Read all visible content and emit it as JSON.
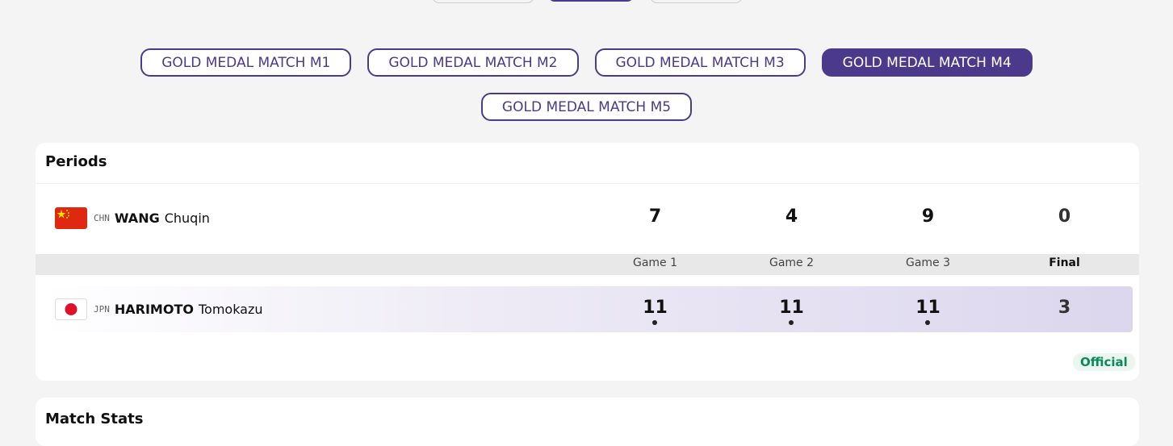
{
  "tabs": [
    {
      "label": "GOLD MEDAL MATCH M1",
      "active": false
    },
    {
      "label": "GOLD MEDAL MATCH M2",
      "active": false
    },
    {
      "label": "GOLD MEDAL MATCH M3",
      "active": false
    },
    {
      "label": "GOLD MEDAL MATCH M4",
      "active": true
    },
    {
      "label": "GOLD MEDAL MATCH M5",
      "active": false
    }
  ],
  "periods": {
    "title": "Periods",
    "columns": [
      "Game 1",
      "Game 2",
      "Game 3",
      "Final"
    ],
    "players": [
      {
        "noc": "CHN",
        "surname": "WANG",
        "given": "Chuqin",
        "scores": [
          7,
          4,
          9,
          0
        ],
        "winner": false
      },
      {
        "noc": "JPN",
        "surname": "HARIMOTO",
        "given": "Tomokazu",
        "scores": [
          11,
          11,
          11,
          3
        ],
        "winner": true
      }
    ],
    "status": "Official"
  },
  "next_section": {
    "title": "Match Stats"
  }
}
